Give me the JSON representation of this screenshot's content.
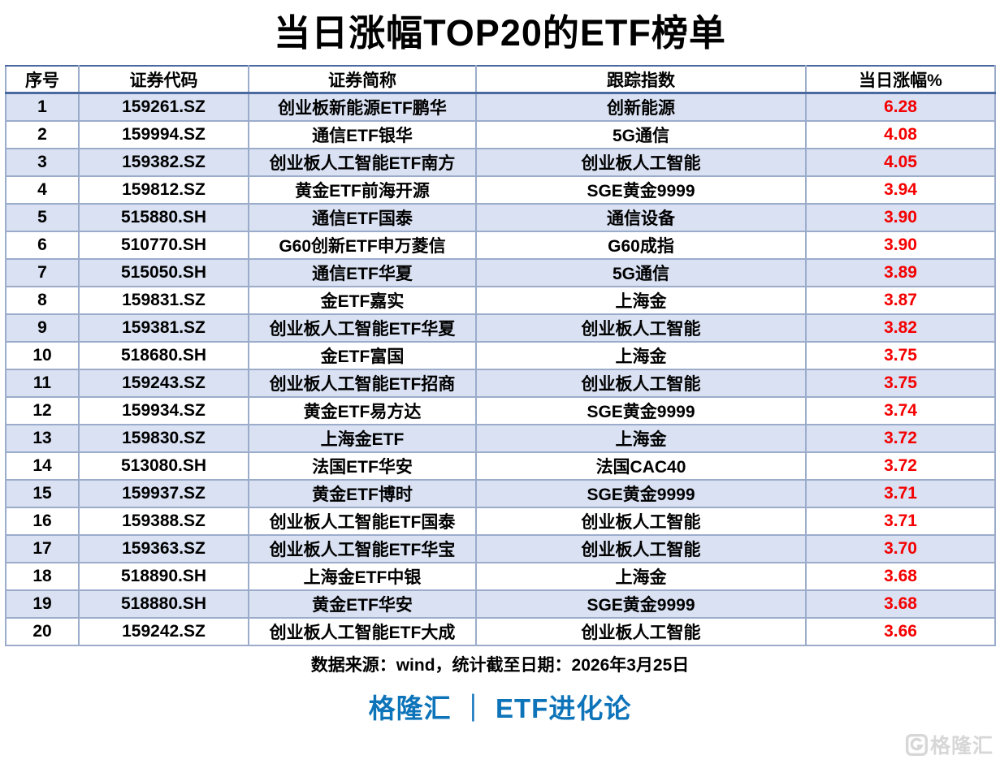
{
  "title": "当日涨幅TOP20的ETF榜单",
  "table": {
    "headers": [
      "序号",
      "证券代码",
      "证券简称",
      "跟踪指数",
      "当日涨幅%"
    ],
    "rows": [
      {
        "no": "1",
        "code": "159261.SZ",
        "name": "创业板新能源ETF鹏华",
        "index": "创新能源",
        "change": "6.28"
      },
      {
        "no": "2",
        "code": "159994.SZ",
        "name": "通信ETF银华",
        "index": "5G通信",
        "change": "4.08"
      },
      {
        "no": "3",
        "code": "159382.SZ",
        "name": "创业板人工智能ETF南方",
        "index": "创业板人工智能",
        "change": "4.05"
      },
      {
        "no": "4",
        "code": "159812.SZ",
        "name": "黄金ETF前海开源",
        "index": "SGE黄金9999",
        "change": "3.94"
      },
      {
        "no": "5",
        "code": "515880.SH",
        "name": "通信ETF国泰",
        "index": "通信设备",
        "change": "3.90"
      },
      {
        "no": "6",
        "code": "510770.SH",
        "name": "G60创新ETF申万菱信",
        "index": "G60成指",
        "change": "3.90"
      },
      {
        "no": "7",
        "code": "515050.SH",
        "name": "通信ETF华夏",
        "index": "5G通信",
        "change": "3.89"
      },
      {
        "no": "8",
        "code": "159831.SZ",
        "name": "金ETF嘉实",
        "index": "上海金",
        "change": "3.87"
      },
      {
        "no": "9",
        "code": "159381.SZ",
        "name": "创业板人工智能ETF华夏",
        "index": "创业板人工智能",
        "change": "3.82"
      },
      {
        "no": "10",
        "code": "518680.SH",
        "name": "金ETF富国",
        "index": "上海金",
        "change": "3.75"
      },
      {
        "no": "11",
        "code": "159243.SZ",
        "name": "创业板人工智能ETF招商",
        "index": "创业板人工智能",
        "change": "3.75"
      },
      {
        "no": "12",
        "code": "159934.SZ",
        "name": "黄金ETF易方达",
        "index": "SGE黄金9999",
        "change": "3.74"
      },
      {
        "no": "13",
        "code": "159830.SZ",
        "name": "上海金ETF",
        "index": "上海金",
        "change": "3.72"
      },
      {
        "no": "14",
        "code": "513080.SH",
        "name": "法国ETF华安",
        "index": "法国CAC40",
        "change": "3.72"
      },
      {
        "no": "15",
        "code": "159937.SZ",
        "name": "黄金ETF博时",
        "index": "SGE黄金9999",
        "change": "3.71"
      },
      {
        "no": "16",
        "code": "159388.SZ",
        "name": "创业板人工智能ETF国泰",
        "index": "创业板人工智能",
        "change": "3.71"
      },
      {
        "no": "17",
        "code": "159363.SZ",
        "name": "创业板人工智能ETF华宝",
        "index": "创业板人工智能",
        "change": "3.70"
      },
      {
        "no": "18",
        "code": "518890.SH",
        "name": "上海金ETF中银",
        "index": "上海金",
        "change": "3.68"
      },
      {
        "no": "19",
        "code": "518880.SH",
        "name": "黄金ETF华安",
        "index": "SGE黄金9999",
        "change": "3.68"
      },
      {
        "no": "20",
        "code": "159242.SZ",
        "name": "创业板人工智能ETF大成",
        "index": "创业板人工智能",
        "change": "3.66"
      }
    ]
  },
  "footer": {
    "source": "数据来源：wind，统计截至日期：2026年3月25日",
    "brand": "格隆汇 ｜ ETF进化论",
    "watermark": "格隆汇"
  },
  "colors": {
    "row_alt_blue": "#d9e1f2",
    "grid_border": "#9baccb",
    "outer_border": "#49699f",
    "change_red": "#f40000",
    "brand_blue": "#0e74ba",
    "watermark_gray": "#d7d7d7"
  }
}
